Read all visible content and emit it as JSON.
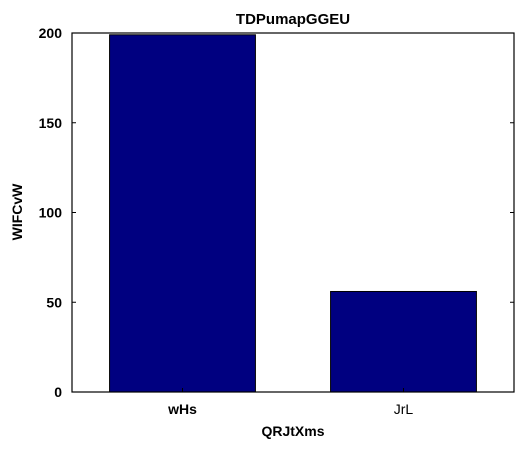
{
  "chart_data": {
    "type": "bar",
    "title": "TDPumapGGEU",
    "xlabel": "QRJtXms",
    "ylabel": "WIFCvW",
    "categories": [
      "wHs",
      "JrL"
    ],
    "values": [
      199,
      56
    ],
    "ylim": [
      0,
      200
    ],
    "yticks": [
      0,
      50,
      100,
      150,
      200
    ],
    "bar_color": "#000080",
    "grid": false,
    "legend": "none"
  }
}
